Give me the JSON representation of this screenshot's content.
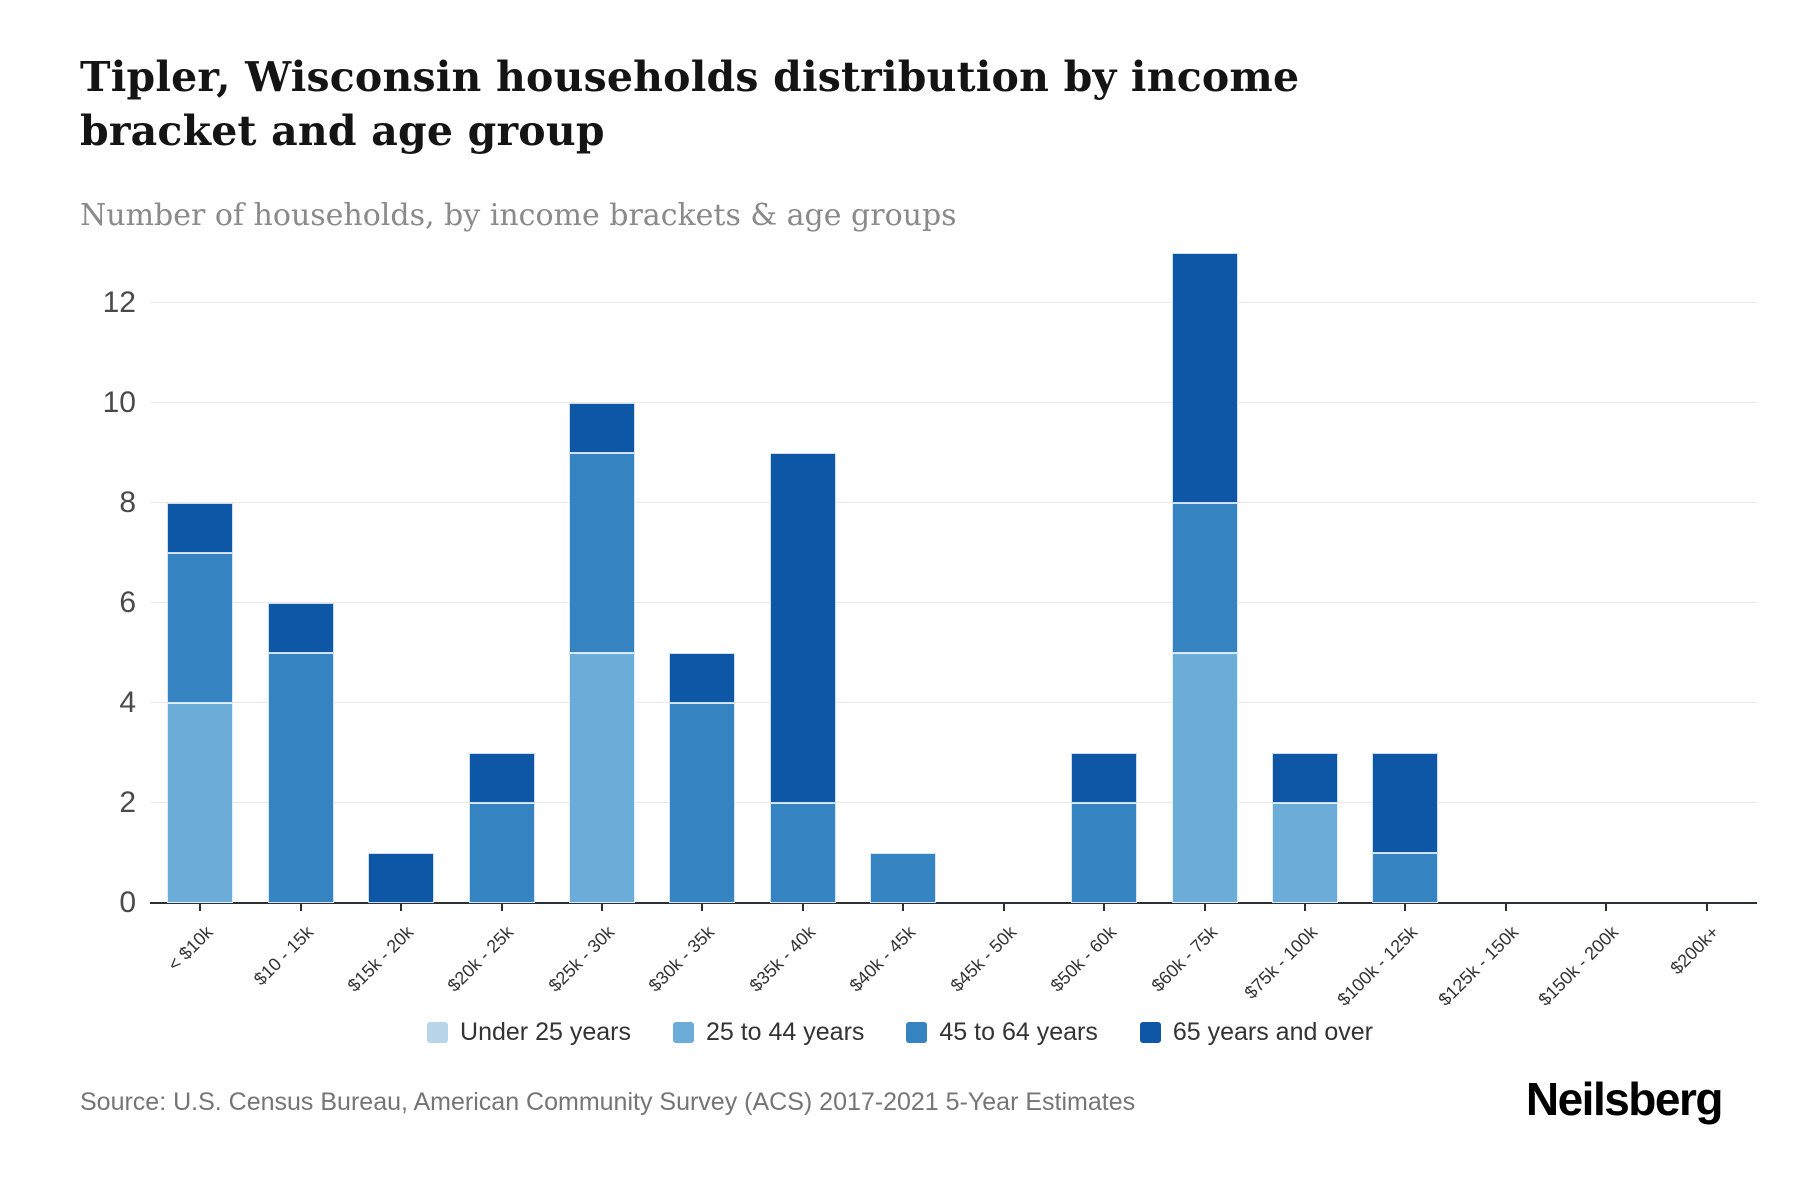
{
  "page": {
    "title": "Tipler, Wisconsin households distribution by income bracket and age group",
    "subtitle": "Number of households, by income brackets & age groups",
    "source": "Source: U.S. Census Bureau, American Community Survey (ACS) 2017-2021 5-Year Estimates",
    "brand": "Neilsberg"
  },
  "chart_data": {
    "type": "bar",
    "stacked": true,
    "title": "Tipler, Wisconsin households distribution by income bracket and age group",
    "subtitle": "Number of households, by income brackets & age groups",
    "xlabel": "",
    "ylabel": "Number of households",
    "ylim": [
      0,
      13
    ],
    "yticks": [
      0,
      2,
      4,
      6,
      8,
      10,
      12
    ],
    "grid": true,
    "legend_position": "bottom",
    "categories": [
      "< $10k",
      "$10 - 15k",
      "$15k - 20k",
      "$20k - 25k",
      "$25k - 30k",
      "$30k - 35k",
      "$35k - 40k",
      "$40k - 45k",
      "$45k - 50k",
      "$50k - 60k",
      "$60k - 75k",
      "$75k - 100k",
      "$100k - 125k",
      "$125k - 150k",
      "$150k - 200k",
      "$200k+"
    ],
    "series": [
      {
        "name": "Under 25 years",
        "color": "#b9d5ea",
        "values": [
          0,
          0,
          0,
          0,
          0,
          0,
          0,
          0,
          0,
          0,
          0,
          0,
          0,
          0,
          0,
          0
        ]
      },
      {
        "name": "25 to 44 years",
        "color": "#6badd8",
        "values": [
          4,
          0,
          0,
          0,
          5,
          0,
          0,
          0,
          0,
          0,
          5,
          2,
          0,
          0,
          0,
          0
        ]
      },
      {
        "name": "45 to 64 years",
        "color": "#3583c1",
        "values": [
          3,
          5,
          0,
          2,
          4,
          4,
          2,
          1,
          0,
          2,
          3,
          0,
          1,
          0,
          0,
          0
        ]
      },
      {
        "name": "65 years and over",
        "color": "#0d57a6",
        "values": [
          1,
          1,
          1,
          1,
          1,
          1,
          7,
          0,
          0,
          1,
          5,
          1,
          2,
          0,
          0,
          0
        ]
      }
    ],
    "totals": [
      8,
      6,
      1,
      3,
      10,
      5,
      9,
      1,
      0,
      3,
      13,
      3,
      3,
      0,
      0,
      0
    ]
  },
  "layout_labels": {
    "legend_title": "",
    "y_axis_name": "",
    "x_axis_name": ""
  }
}
